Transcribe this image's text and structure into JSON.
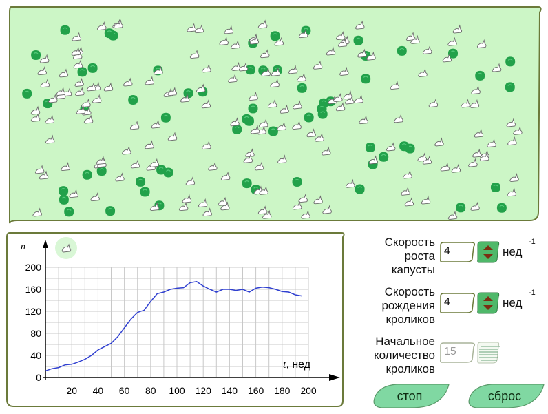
{
  "colors": {
    "field_bg": "#ccf6c6",
    "border": "#6b7a3a",
    "cabbage": "#22a14a",
    "graph_line": "#2f3fd0",
    "leaf_button": "#80d8a2",
    "stepper": "#4fb86a"
  },
  "graph": {
    "y_axis_symbol": "n",
    "x_axis_symbol": "t",
    "x_axis_unit": ", нед",
    "y_ticks": [
      "0",
      "40",
      "80",
      "120",
      "160",
      "200"
    ],
    "x_ticks": [
      "20",
      "40",
      "60",
      "80",
      "100",
      "120",
      "140",
      "160",
      "180",
      "200"
    ],
    "legend_icon": "rabbit-icon"
  },
  "chart_data": {
    "type": "line",
    "xlabel": "t, нед",
    "ylabel": "n",
    "xlim": [
      0,
      200
    ],
    "ylim": [
      0,
      200
    ],
    "grid": true,
    "series": [
      {
        "color": "#2f3fd0",
        "x": [
          0,
          5,
          10,
          15,
          20,
          25,
          30,
          35,
          40,
          45,
          50,
          55,
          60,
          65,
          70,
          75,
          80,
          85,
          90,
          95,
          100,
          105,
          110,
          115,
          120,
          125,
          130,
          135,
          140,
          145,
          150,
          155,
          160,
          165,
          170,
          175,
          180,
          185,
          190,
          195
        ],
        "y": [
          12,
          16,
          18,
          23,
          24,
          28,
          33,
          40,
          50,
          56,
          62,
          74,
          90,
          106,
          118,
          122,
          138,
          152,
          155,
          160,
          162,
          163,
          172,
          174,
          166,
          160,
          155,
          160,
          160,
          158,
          160,
          155,
          162,
          164,
          163,
          160,
          156,
          155,
          150,
          148
        ]
      }
    ]
  },
  "controls": {
    "cabbage_rate": {
      "label": [
        "Скорость",
        "роста",
        "капусты"
      ],
      "value": "4",
      "unit": "нед",
      "unit_sup": "-1"
    },
    "rabbit_rate": {
      "label": [
        "Скорость",
        "рождения",
        "кроликов"
      ],
      "value": "4",
      "unit": "нед",
      "unit_sup": "-1"
    },
    "initial_count": {
      "label": [
        "Начальное",
        "количество",
        "кроликов"
      ],
      "value": "15"
    }
  },
  "buttons": {
    "stop": "стоп",
    "reset": "сброс"
  }
}
